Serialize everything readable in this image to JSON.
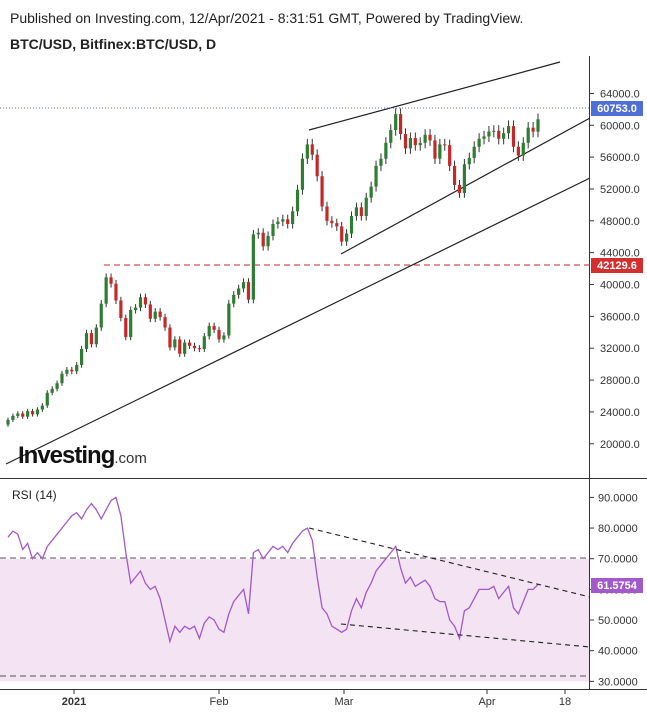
{
  "header": "Published on Investing.com, 12/Apr/2021 - 8:31:51 GMT, Powered by TradingView.",
  "symbol": "BTC/USD, Bitfinex:BTC/USD, D",
  "watermark": {
    "main": "Investing",
    "suffix": ".com"
  },
  "rsi_label": "RSI (14)",
  "colors": {
    "up": "#26a69a",
    "down": "#ef5350",
    "candle_up": "#2e7d32",
    "candle_down": "#c62828",
    "rsi": "#a259c9",
    "price_tag": "#4f6fd8",
    "level_tag": "#d32f2f",
    "rsi_band": "#f3e3f3"
  },
  "chart_data": [
    {
      "type": "candlestick",
      "title": "BTC/USD, Bitfinex:BTC/USD, D",
      "x_ticks": [
        "2021",
        "Feb",
        "Mar",
        "Apr",
        "18"
      ],
      "y_ticks": [
        "64000.0",
        "60000.0",
        "56000.0",
        "52000.0",
        "48000.0",
        "44000.0",
        "40000.0",
        "36000.0",
        "32000.0",
        "28000.0",
        "24000.0",
        "20000.0"
      ],
      "ylim": [
        15700,
        68700
      ],
      "last_price": "60753.0",
      "horizontal_level": "42129.6",
      "closes": [
        23000,
        23500,
        23800,
        23400,
        24100,
        23700,
        24300,
        24800,
        26400,
        26900,
        27600,
        28800,
        29300,
        29100,
        29900,
        31900,
        33900,
        32500,
        34600,
        37600,
        40900,
        40100,
        38000,
        35800,
        33400,
        36800,
        37100,
        38400,
        37500,
        35700,
        36600,
        35900,
        34600,
        32100,
        33100,
        31300,
        32700,
        32300,
        32000,
        31900,
        33500,
        34800,
        34300,
        33100,
        33600,
        37600,
        38700,
        39500,
        40300,
        38100,
        46300,
        46500,
        44800,
        46100,
        47600,
        47900,
        48200,
        47600,
        49200,
        51900,
        55800,
        57600,
        56300,
        53600,
        49800,
        48000,
        47700,
        47300,
        45400,
        46400,
        48600,
        49700,
        48600,
        50900,
        52300,
        54900,
        55800,
        57800,
        59400,
        61400,
        58900,
        57100,
        58400,
        57500,
        57800,
        58800,
        58100,
        55800,
        57600,
        57500,
        54900,
        52500,
        51500,
        55100,
        55900,
        57300,
        58300,
        58600,
        59200,
        59300,
        58300,
        59000,
        59900,
        57300,
        56200,
        57800,
        59700,
        59200,
        60753
      ],
      "rsi": {
        "ylim": [
          27.5,
          96
        ],
        "ticks": [
          "90.0000",
          "80.0000",
          "70.0000",
          "60.0000",
          "50.0000",
          "40.0000",
          "30.0000"
        ],
        "bands": [
          70,
          30
        ],
        "last_value": "61.5754",
        "values": [
          77,
          79,
          78,
          73,
          75,
          70,
          72,
          70,
          74,
          76,
          78,
          80,
          82,
          84,
          85,
          83,
          86,
          88,
          86,
          83,
          86,
          89,
          90,
          84,
          72,
          62,
          64,
          66,
          62,
          60,
          61,
          57,
          50,
          43,
          48,
          46,
          48,
          47,
          48,
          44,
          49,
          51,
          50,
          47,
          46,
          52,
          56,
          58,
          60,
          52,
          72,
          73,
          70,
          72,
          74,
          73,
          74,
          72,
          75,
          77,
          79,
          80,
          76,
          64,
          54,
          52,
          48,
          47,
          46,
          47,
          53,
          57,
          54,
          59,
          62,
          66,
          68,
          70,
          72,
          74,
          67,
          62,
          64,
          61,
          62,
          63,
          61,
          57,
          56,
          56,
          50,
          48,
          44,
          53,
          54,
          57,
          60,
          60,
          60,
          61,
          57,
          59,
          61,
          54,
          52,
          56,
          60,
          60,
          61.5754
        ]
      }
    }
  ]
}
